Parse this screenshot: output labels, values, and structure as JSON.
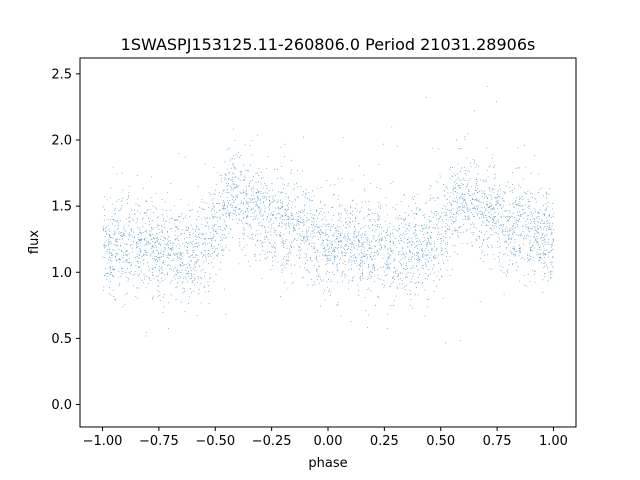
{
  "chart_data": {
    "type": "scatter",
    "title": "1SWASPJ153125.11-260806.0 Period 21031.28906s",
    "xlabel": "phase",
    "ylabel": "flux",
    "xlim": [
      -1.1,
      1.1
    ],
    "ylim": [
      -0.17,
      2.62
    ],
    "x_ticks": [
      -1.0,
      -0.75,
      -0.5,
      -0.25,
      0.0,
      0.25,
      0.5,
      0.75,
      1.0
    ],
    "x_tick_labels": [
      "−1.00",
      "−0.75",
      "−0.50",
      "−0.25",
      "0.00",
      "0.25",
      "0.50",
      "0.75",
      "1.00"
    ],
    "y_ticks": [
      0.0,
      0.5,
      1.0,
      1.5,
      2.0,
      2.5
    ],
    "y_tick_labels": [
      "0.0",
      "0.5",
      "1.0",
      "1.5",
      "2.0",
      "2.5"
    ],
    "grid": false,
    "marker_color": "#1f77b4",
    "series": [
      {
        "phase_range": [
          -1.0,
          1.0
        ],
        "approx_points": 20000,
        "baseline_flux": 1.2,
        "typical_spread": 0.18,
        "light_curve_profile": [
          {
            "phase": -1.0,
            "flux": 1.22
          },
          {
            "phase": -0.75,
            "flux": 1.18
          },
          {
            "phase": -0.6,
            "flux": 1.15
          },
          {
            "phase": -0.5,
            "flux": 1.32
          },
          {
            "phase": -0.42,
            "flux": 1.6
          },
          {
            "phase": -0.3,
            "flux": 1.45
          },
          {
            "phase": -0.1,
            "flux": 1.3
          },
          {
            "phase": 0.0,
            "flux": 1.22
          },
          {
            "phase": 0.25,
            "flux": 1.18
          },
          {
            "phase": 0.4,
            "flux": 1.15
          },
          {
            "phase": 0.5,
            "flux": 1.32
          },
          {
            "phase": 0.58,
            "flux": 1.6
          },
          {
            "phase": 0.7,
            "flux": 1.45
          },
          {
            "phase": 0.9,
            "flux": 1.3
          },
          {
            "phase": 1.0,
            "flux": 1.22
          }
        ]
      }
    ]
  }
}
